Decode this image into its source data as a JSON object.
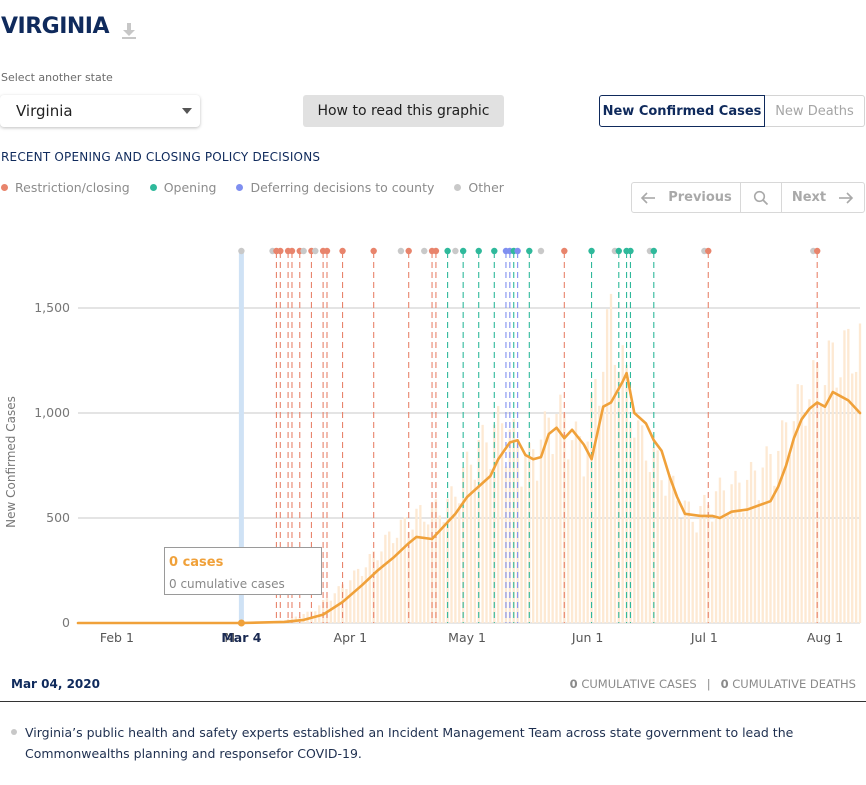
{
  "header": {
    "title": "VIRGINIA",
    "download_icon": "download-icon"
  },
  "controls": {
    "select_label": "Select another state",
    "state_value": "Virginia",
    "how_to_label": "How to read this graphic",
    "toggle": {
      "cases_label": "New Confirmed Cases",
      "deaths_label": "New Deaths",
      "selected": "cases"
    }
  },
  "policy": {
    "heading": "RECENT OPENING AND CLOSING POLICY DECISIONS",
    "legend": [
      {
        "label": "Restriction/closing",
        "color": "#e8846c"
      },
      {
        "label": "Opening",
        "color": "#2fb99b"
      },
      {
        "label": "Deferring decisions to county",
        "color": "#7f8ff0"
      },
      {
        "label": "Other",
        "color": "#c9c9c9"
      }
    ],
    "pager": {
      "prev_label": "Previous",
      "next_label": "Next",
      "search_icon": "search-icon"
    }
  },
  "tooltip": {
    "cases": "0 cases",
    "cumulative": "0 cumulative cases"
  },
  "footer": {
    "date": "Mar 04, 2020",
    "cum_cases_value": "0",
    "cum_cases_label": "CUMULATIVE CASES",
    "cum_deaths_value": "0",
    "cum_deaths_label": "CUMULATIVE DEATHS"
  },
  "note": "Virginia’s public health and safety experts established an Incident Management Team across state government to lead the Commonwealths planning and responsefor COVID-19.",
  "chart_data": {
    "type": "bar",
    "ylabel": "New Confirmed Cases",
    "ylim": [
      0,
      1800
    ],
    "yticks": [
      0,
      500,
      1000,
      1500
    ],
    "x_start": "2020-01-22",
    "x_end": "2020-08-10",
    "xticks": [
      {
        "date": "2020-02-01",
        "label": "Feb 1"
      },
      {
        "date": "2020-03-01",
        "label": "M"
      },
      {
        "date": "2020-04-01",
        "label": "Apr 1"
      },
      {
        "date": "2020-05-01",
        "label": "May 1"
      },
      {
        "date": "2020-06-01",
        "label": "Jun 1"
      },
      {
        "date": "2020-07-01",
        "label": "Jul 1"
      },
      {
        "date": "2020-08-01",
        "label": "Aug 1"
      }
    ],
    "selected_date": "2020-03-04",
    "selected_label": "Mar 4",
    "bar_color": "#fde9d3",
    "line_color": "#f0a13a",
    "grid": true,
    "average_points": [
      [
        "2020-01-22",
        0
      ],
      [
        "2020-03-04",
        0
      ],
      [
        "2020-03-15",
        5
      ],
      [
        "2020-03-20",
        15
      ],
      [
        "2020-03-25",
        40
      ],
      [
        "2020-03-30",
        100
      ],
      [
        "2020-04-04",
        180
      ],
      [
        "2020-04-08",
        250
      ],
      [
        "2020-04-12",
        310
      ],
      [
        "2020-04-16",
        380
      ],
      [
        "2020-04-18",
        410
      ],
      [
        "2020-04-22",
        400
      ],
      [
        "2020-04-24",
        440
      ],
      [
        "2020-04-28",
        520
      ],
      [
        "2020-05-01",
        600
      ],
      [
        "2020-05-04",
        650
      ],
      [
        "2020-05-07",
        700
      ],
      [
        "2020-05-09",
        780
      ],
      [
        "2020-05-12",
        860
      ],
      [
        "2020-05-14",
        870
      ],
      [
        "2020-05-16",
        800
      ],
      [
        "2020-05-18",
        780
      ],
      [
        "2020-05-20",
        790
      ],
      [
        "2020-05-22",
        900
      ],
      [
        "2020-05-24",
        930
      ],
      [
        "2020-05-26",
        880
      ],
      [
        "2020-05-28",
        920
      ],
      [
        "2020-05-31",
        850
      ],
      [
        "2020-06-02",
        780
      ],
      [
        "2020-06-05",
        1030
      ],
      [
        "2020-06-07",
        1050
      ],
      [
        "2020-06-10",
        1150
      ],
      [
        "2020-06-11",
        1190
      ],
      [
        "2020-06-13",
        1000
      ],
      [
        "2020-06-16",
        950
      ],
      [
        "2020-06-18",
        870
      ],
      [
        "2020-06-20",
        820
      ],
      [
        "2020-06-22",
        700
      ],
      [
        "2020-06-24",
        600
      ],
      [
        "2020-06-26",
        520
      ],
      [
        "2020-06-30",
        510
      ],
      [
        "2020-07-03",
        510
      ],
      [
        "2020-07-05",
        500
      ],
      [
        "2020-07-08",
        530
      ],
      [
        "2020-07-12",
        540
      ],
      [
        "2020-07-15",
        560
      ],
      [
        "2020-07-18",
        580
      ],
      [
        "2020-07-20",
        650
      ],
      [
        "2020-07-22",
        750
      ],
      [
        "2020-07-24",
        880
      ],
      [
        "2020-07-26",
        970
      ],
      [
        "2020-07-28",
        1020
      ],
      [
        "2020-07-30",
        1050
      ],
      [
        "2020-08-01",
        1030
      ],
      [
        "2020-08-03",
        1100
      ],
      [
        "2020-08-05",
        1080
      ],
      [
        "2020-08-07",
        1060
      ],
      [
        "2020-08-10",
        1000
      ]
    ],
    "daily_points": [
      [
        "2020-03-08",
        1
      ],
      [
        "2020-03-15",
        12
      ],
      [
        "2020-03-22",
        55
      ],
      [
        "2020-03-29",
        160
      ],
      [
        "2020-04-05",
        280
      ],
      [
        "2020-04-12",
        430
      ],
      [
        "2020-04-19",
        520
      ],
      [
        "2020-04-26",
        560
      ],
      [
        "2020-05-03",
        820
      ],
      [
        "2020-05-10",
        960
      ],
      [
        "2020-05-17",
        780
      ],
      [
        "2020-05-24",
        1020
      ],
      [
        "2020-05-31",
        820
      ],
      [
        "2020-06-07",
        1470
      ],
      [
        "2020-06-14",
        900
      ],
      [
        "2020-06-21",
        700
      ],
      [
        "2020-06-28",
        500
      ],
      [
        "2020-07-05",
        630
      ],
      [
        "2020-07-12",
        680
      ],
      [
        "2020-07-19",
        800
      ],
      [
        "2020-07-26",
        1080
      ],
      [
        "2020-08-02",
        1240
      ],
      [
        "2020-08-09",
        1330
      ]
    ],
    "policy_events": [
      {
        "date": "2020-03-04",
        "type": "other"
      },
      {
        "date": "2020-03-12",
        "type": "other"
      },
      {
        "date": "2020-03-13",
        "type": "restriction"
      },
      {
        "date": "2020-03-14",
        "type": "restriction"
      },
      {
        "date": "2020-03-16",
        "type": "restriction"
      },
      {
        "date": "2020-03-17",
        "type": "restriction"
      },
      {
        "date": "2020-03-19",
        "type": "restriction"
      },
      {
        "date": "2020-03-20",
        "type": "other"
      },
      {
        "date": "2020-03-22",
        "type": "restriction"
      },
      {
        "date": "2020-03-23",
        "type": "other"
      },
      {
        "date": "2020-03-25",
        "type": "restriction"
      },
      {
        "date": "2020-03-26",
        "type": "restriction"
      },
      {
        "date": "2020-03-30",
        "type": "restriction"
      },
      {
        "date": "2020-04-07",
        "type": "restriction"
      },
      {
        "date": "2020-04-14",
        "type": "other"
      },
      {
        "date": "2020-04-16",
        "type": "restriction"
      },
      {
        "date": "2020-04-20",
        "type": "other"
      },
      {
        "date": "2020-04-22",
        "type": "restriction"
      },
      {
        "date": "2020-04-23",
        "type": "restriction"
      },
      {
        "date": "2020-04-26",
        "type": "opening"
      },
      {
        "date": "2020-04-28",
        "type": "other"
      },
      {
        "date": "2020-04-30",
        "type": "opening"
      },
      {
        "date": "2020-05-04",
        "type": "opening"
      },
      {
        "date": "2020-05-08",
        "type": "opening"
      },
      {
        "date": "2020-05-11",
        "type": "deferring"
      },
      {
        "date": "2020-05-12",
        "type": "deferring"
      },
      {
        "date": "2020-05-13",
        "type": "opening"
      },
      {
        "date": "2020-05-14",
        "type": "deferring"
      },
      {
        "date": "2020-05-17",
        "type": "opening"
      },
      {
        "date": "2020-05-20",
        "type": "other"
      },
      {
        "date": "2020-05-26",
        "type": "restriction"
      },
      {
        "date": "2020-06-02",
        "type": "opening"
      },
      {
        "date": "2020-06-08",
        "type": "other"
      },
      {
        "date": "2020-06-09",
        "type": "opening"
      },
      {
        "date": "2020-06-11",
        "type": "opening"
      },
      {
        "date": "2020-06-12",
        "type": "opening"
      },
      {
        "date": "2020-06-17",
        "type": "other"
      },
      {
        "date": "2020-06-18",
        "type": "opening"
      },
      {
        "date": "2020-07-01",
        "type": "other"
      },
      {
        "date": "2020-07-02",
        "type": "restriction"
      },
      {
        "date": "2020-07-29",
        "type": "other"
      },
      {
        "date": "2020-07-30",
        "type": "restriction"
      }
    ]
  }
}
